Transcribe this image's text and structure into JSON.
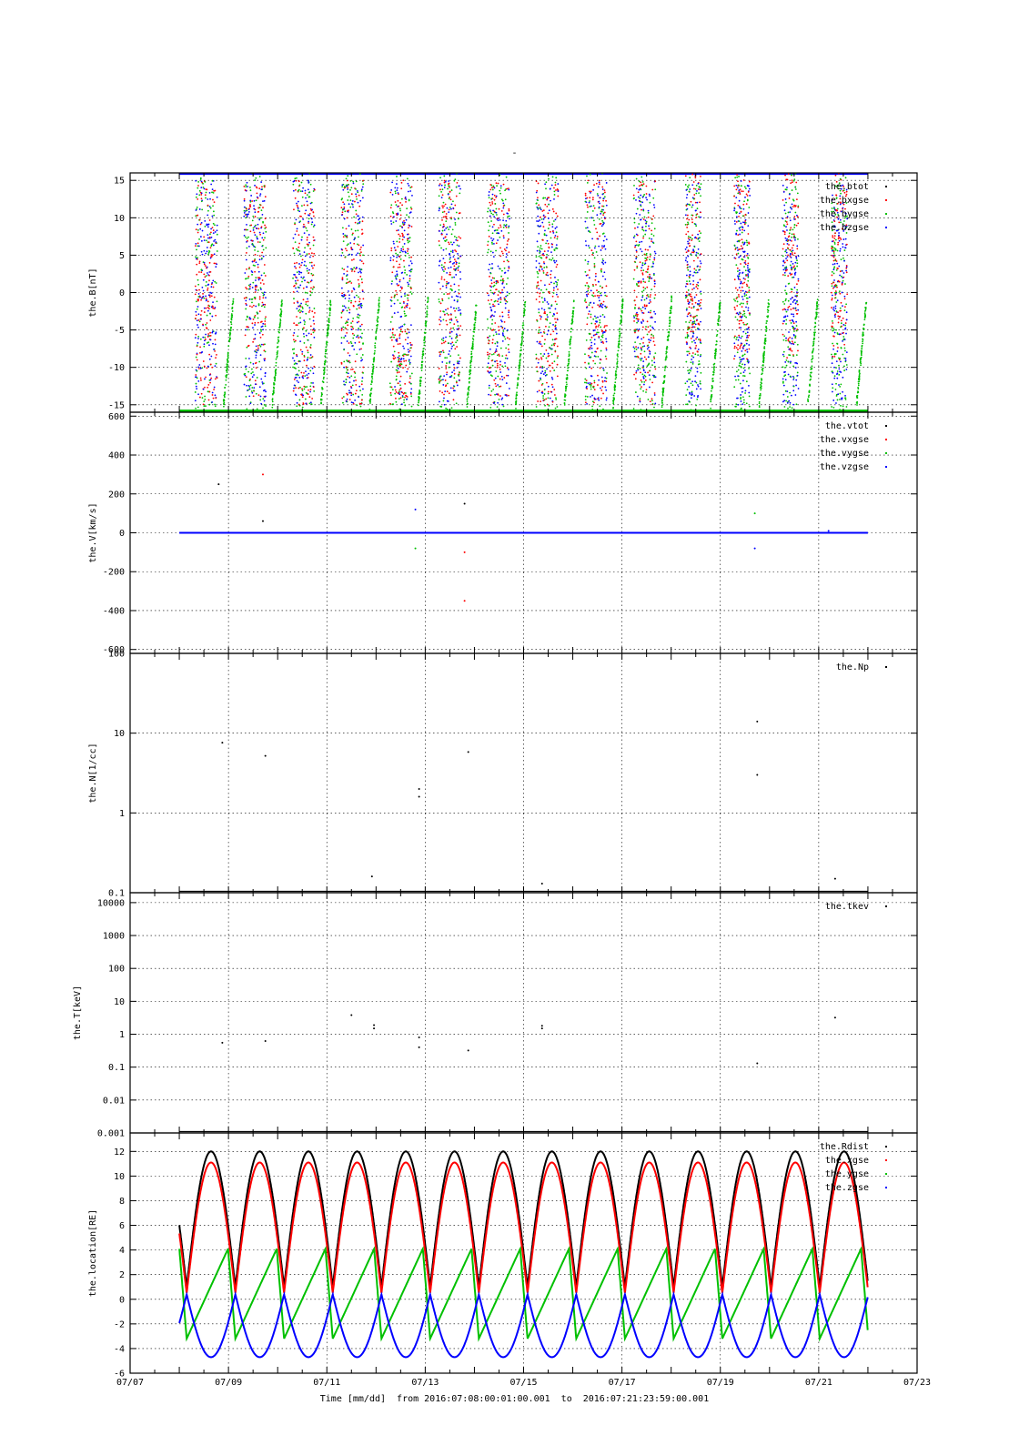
{
  "figure": {
    "title": "-",
    "xlabel": "Time [mm/dd]  from 2016:07:08:00:01:00.001  to  2016:07:21:23:59:00.001"
  },
  "chart_data": [
    {
      "id": "B",
      "type": "scatter",
      "ylabel": "the.B[nT]",
      "ylim": [
        -16,
        16
      ],
      "yticks": [
        15,
        10,
        5,
        0,
        -5,
        -10,
        -15
      ],
      "ytick_labels": [
        "15",
        "10",
        "5",
        "0",
        "-5",
        "-10",
        "-15"
      ],
      "grid": true,
      "legend_position": "top-right",
      "series": [
        {
          "name": "the.btot",
          "color": "#000000"
        },
        {
          "name": "the.bxgse",
          "color": "#ff0000"
        },
        {
          "name": "the.bygse",
          "color": "#00c000"
        },
        {
          "name": "the.bzgse",
          "color": "#0000ff"
        }
      ]
    },
    {
      "id": "V",
      "type": "scatter",
      "ylabel": "the.V[km/s]",
      "ylim": [
        -620,
        620
      ],
      "yticks": [
        600,
        400,
        200,
        0,
        -200,
        -400,
        -600
      ],
      "ytick_labels": [
        "600",
        "400",
        "200",
        "0",
        "-200",
        "-400",
        "-600"
      ],
      "grid": true,
      "legend_position": "top-right",
      "series": [
        {
          "name": "the.vtot",
          "color": "#000000"
        },
        {
          "name": "the.vxgse",
          "color": "#ff0000"
        },
        {
          "name": "the.vygse",
          "color": "#00c000"
        },
        {
          "name": "the.vzgse",
          "color": "#0000ff"
        }
      ]
    },
    {
      "id": "N",
      "type": "scatter",
      "ylabel": "the.N[1/cc]",
      "yscale": "log",
      "ylim": [
        0.1,
        100
      ],
      "yticks": [
        100,
        10,
        1,
        0.1
      ],
      "ytick_labels": [
        "100",
        "10",
        "1",
        "0.1"
      ],
      "grid": true,
      "legend_position": "top-right",
      "series": [
        {
          "name": "the.Np",
          "color": "#000000",
          "points": [
            [
              "07/08 21:00",
              7.6
            ],
            [
              "07/09 18:00",
              5.2
            ],
            [
              "07/12 21:00",
              2.0
            ],
            [
              "07/12 21:00",
              1.6
            ],
            [
              "07/11 22:00",
              0.16
            ],
            [
              "07/13 21:00",
              5.8
            ],
            [
              "07/15 09:00",
              0.13
            ],
            [
              "07/19 18:00",
              14.0
            ],
            [
              "07/19 18:00",
              3.0
            ],
            [
              "07/21 08:00",
              0.15
            ]
          ]
        }
      ]
    },
    {
      "id": "T",
      "type": "scatter",
      "ylabel": "the.T[keV]",
      "yscale": "log",
      "ylim": [
        0.001,
        20000
      ],
      "yticks": [
        10000,
        1000,
        100,
        10,
        1,
        0.1,
        0.01,
        0.001
      ],
      "ytick_labels": [
        "10000",
        "1000",
        "100",
        "10",
        "1",
        "0.1",
        "0.01",
        "0.001"
      ],
      "grid": true,
      "legend_position": "top-right",
      "series": [
        {
          "name": "the.tkev",
          "color": "#000000",
          "points": [
            [
              "07/08 21:00",
              0.55
            ],
            [
              "07/09 18:00",
              0.62
            ],
            [
              "07/11 12:00",
              3.8
            ],
            [
              "07/11 23:00",
              1.9
            ],
            [
              "07/11 23:00",
              1.5
            ],
            [
              "07/12 21:00",
              0.8
            ],
            [
              "07/12 21:00",
              0.4
            ],
            [
              "07/13 21:00",
              0.32
            ],
            [
              "07/15 09:00",
              1.8
            ],
            [
              "07/15 09:00",
              1.5
            ],
            [
              "07/19 18:00",
              0.13
            ],
            [
              "07/21 08:00",
              3.2
            ]
          ]
        }
      ]
    },
    {
      "id": "loc",
      "type": "line",
      "ylabel": "the.location[RE]",
      "ylim": [
        -6,
        13.5
      ],
      "yticks": [
        12,
        10,
        8,
        6,
        4,
        2,
        0,
        -2,
        -4,
        -6
      ],
      "ytick_labels": [
        "12",
        "10",
        "8",
        "6",
        "4",
        "2",
        "0",
        "-2",
        "-4",
        "-6"
      ],
      "grid": true,
      "legend_position": "top-right",
      "orbit_period_days": 0.99,
      "series": [
        {
          "name": "the.Rdist",
          "color": "#000000"
        },
        {
          "name": "the.xgse",
          "color": "#ff0000"
        },
        {
          "name": "the.ygse",
          "color": "#00c000"
        },
        {
          "name": "the.zgse",
          "color": "#0000ff"
        }
      ]
    }
  ],
  "xaxis": {
    "range": [
      "07/07",
      "07/23"
    ],
    "ticks": [
      "07/07",
      "07/09",
      "07/11",
      "07/13",
      "07/15",
      "07/17",
      "07/19",
      "07/21",
      "07/23"
    ],
    "data_start": "07/08 00:01",
    "data_end": "07/21 23:59"
  }
}
